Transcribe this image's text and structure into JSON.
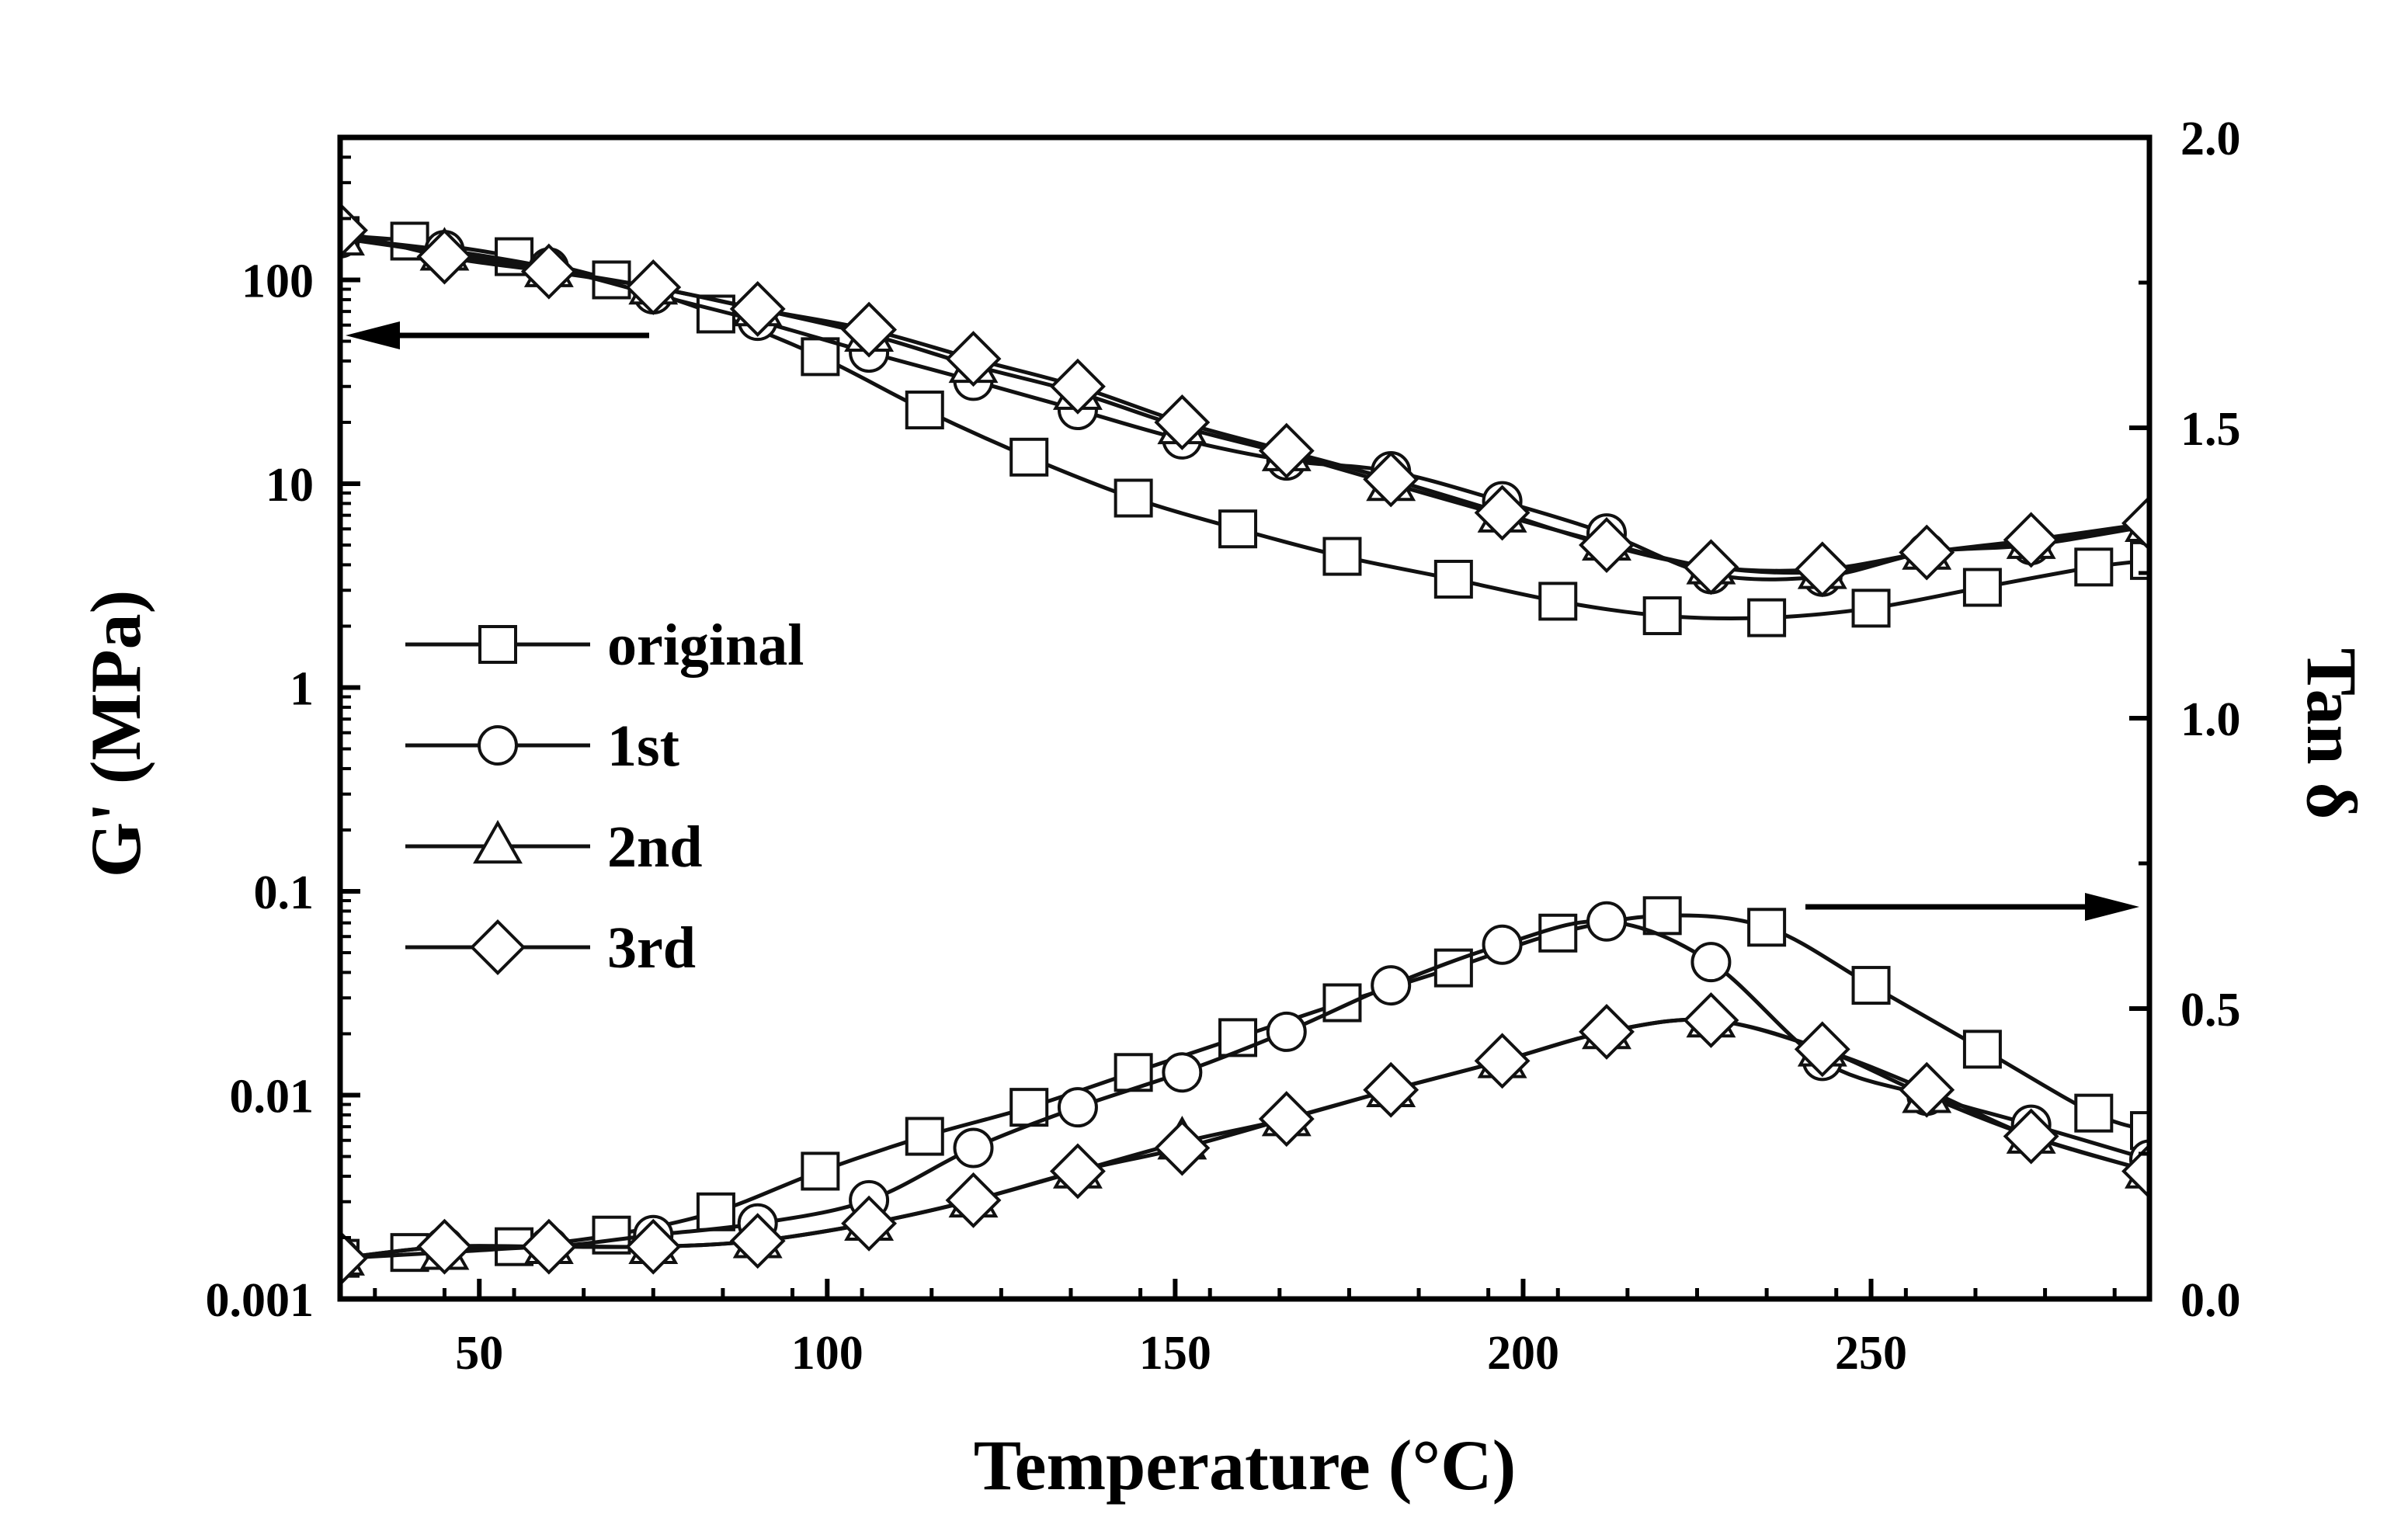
{
  "chart_data": {
    "type": "line",
    "title": "",
    "xlabel": "Temperature (°C)",
    "ylabel_left": "G' (MPa)",
    "ylabel_right": "Tan δ",
    "xlim": [
      30,
      290
    ],
    "ylim_left": [
      0.001,
      500
    ],
    "ylim_left_scale": "log",
    "ylim_right": [
      0.0,
      2.0
    ],
    "x_ticks": [
      50,
      100,
      150,
      200,
      250
    ],
    "y_left_ticks": [
      {
        "value": 0.001,
        "label": "0.001"
      },
      {
        "value": 0.01,
        "label": "0.01"
      },
      {
        "value": 0.1,
        "label": "0.1"
      },
      {
        "value": 1,
        "label": "1"
      },
      {
        "value": 10,
        "label": "10"
      },
      {
        "value": 100,
        "label": "100"
      }
    ],
    "y_right_ticks": [
      {
        "value": 0.0,
        "label": "0.0"
      },
      {
        "value": 0.5,
        "label": "0.5"
      },
      {
        "value": 1.0,
        "label": "1.0"
      },
      {
        "value": 1.5,
        "label": "1.5"
      },
      {
        "value": 2.0,
        "label": "2.0"
      }
    ],
    "legend_position": "left-center",
    "annotations": [
      {
        "type": "arrow",
        "direction": "left",
        "refers_to": "G' (left axis)"
      },
      {
        "type": "arrow",
        "direction": "right",
        "refers_to": "Tan δ (right axis)"
      }
    ],
    "series": [
      {
        "name": "original",
        "marker": "square",
        "axis": "left",
        "quantity": "G'",
        "x": [
          30,
          40,
          55,
          69,
          84,
          99,
          114,
          129,
          144,
          159,
          174,
          190,
          205,
          220,
          235,
          250,
          266,
          282,
          290
        ],
        "y": [
          165,
          155,
          130,
          100,
          68,
          42,
          23,
          13.5,
          8.5,
          6.0,
          4.4,
          3.4,
          2.65,
          2.25,
          2.2,
          2.45,
          3.1,
          3.9,
          4.2
        ]
      },
      {
        "name": "1st",
        "marker": "circle",
        "axis": "left",
        "quantity": "G'",
        "x": [
          30,
          45,
          60,
          75,
          90,
          106,
          121,
          136,
          151,
          166,
          181,
          197,
          212,
          227,
          243,
          258,
          273,
          290
        ],
        "y": [
          160,
          140,
          115,
          85,
          63,
          44,
          32,
          23,
          16.5,
          13,
          11.5,
          8.2,
          5.7,
          3.6,
          3.5,
          4.6,
          5.0,
          6.2
        ]
      },
      {
        "name": "2nd",
        "marker": "triangle",
        "axis": "left",
        "quantity": "G'",
        "x": [
          30,
          45,
          60,
          75,
          90,
          106,
          121,
          136,
          151,
          166,
          181,
          197,
          212,
          227,
          243,
          258,
          273,
          290
        ],
        "y": [
          160,
          135,
          112,
          92,
          72,
          54,
          38,
          28,
          19,
          14,
          10,
          7.0,
          5.1,
          3.9,
          3.7,
          4.6,
          5.2,
          6.3
        ]
      },
      {
        "name": "3rd",
        "marker": "diamond",
        "axis": "left",
        "quantity": "G'",
        "x": [
          30,
          45,
          60,
          75,
          90,
          106,
          121,
          136,
          151,
          166,
          181,
          197,
          212,
          227,
          243,
          258,
          273,
          290
        ],
        "y": [
          175,
          130,
          110,
          92,
          72,
          57,
          41,
          30,
          20,
          14.5,
          10.5,
          7.2,
          5.0,
          3.9,
          3.8,
          4.6,
          5.3,
          6.4
        ]
      },
      {
        "name": "original",
        "marker": "square",
        "axis": "right",
        "quantity": "Tan δ",
        "x": [
          30,
          40,
          55,
          69,
          84,
          99,
          114,
          129,
          144,
          159,
          174,
          190,
          205,
          220,
          235,
          250,
          266,
          282,
          290
        ],
        "y": [
          0.07,
          0.08,
          0.09,
          0.11,
          0.15,
          0.22,
          0.28,
          0.33,
          0.39,
          0.45,
          0.51,
          0.57,
          0.63,
          0.66,
          0.64,
          0.54,
          0.43,
          0.32,
          0.29
        ]
      },
      {
        "name": "1st",
        "marker": "circle",
        "axis": "right",
        "quantity": "Tan δ",
        "x": [
          30,
          45,
          60,
          75,
          90,
          106,
          121,
          136,
          151,
          166,
          181,
          197,
          212,
          227,
          243,
          258,
          273,
          290
        ],
        "y": [
          0.07,
          0.09,
          0.09,
          0.11,
          0.13,
          0.17,
          0.26,
          0.33,
          0.39,
          0.46,
          0.54,
          0.61,
          0.65,
          0.58,
          0.41,
          0.35,
          0.3,
          0.24
        ]
      },
      {
        "name": "2nd",
        "marker": "triangle",
        "axis": "right",
        "quantity": "Tan δ",
        "x": [
          30,
          45,
          60,
          75,
          90,
          106,
          121,
          136,
          151,
          166,
          181,
          197,
          212,
          227,
          243,
          258,
          273,
          290
        ],
        "y": [
          0.07,
          0.08,
          0.09,
          0.09,
          0.1,
          0.13,
          0.17,
          0.22,
          0.27,
          0.31,
          0.36,
          0.41,
          0.46,
          0.48,
          0.43,
          0.35,
          0.28,
          0.22
        ]
      },
      {
        "name": "3rd",
        "marker": "diamond",
        "axis": "right",
        "quantity": "Tan δ",
        "x": [
          30,
          45,
          60,
          75,
          90,
          106,
          121,
          136,
          151,
          166,
          181,
          197,
          212,
          227,
          243,
          258,
          273,
          290
        ],
        "y": [
          0.07,
          0.09,
          0.09,
          0.09,
          0.1,
          0.13,
          0.17,
          0.22,
          0.26,
          0.31,
          0.36,
          0.41,
          0.46,
          0.48,
          0.43,
          0.36,
          0.28,
          0.22
        ]
      }
    ]
  },
  "legend": {
    "entries": [
      {
        "label": "original",
        "marker": "square"
      },
      {
        "label": "1st",
        "marker": "circle"
      },
      {
        "label": "2nd",
        "marker": "triangle"
      },
      {
        "label": "3rd",
        "marker": "diamond"
      }
    ]
  },
  "colors": {
    "line": "#111111",
    "marker_fill": "#ffffff",
    "background": "#ffffff"
  }
}
